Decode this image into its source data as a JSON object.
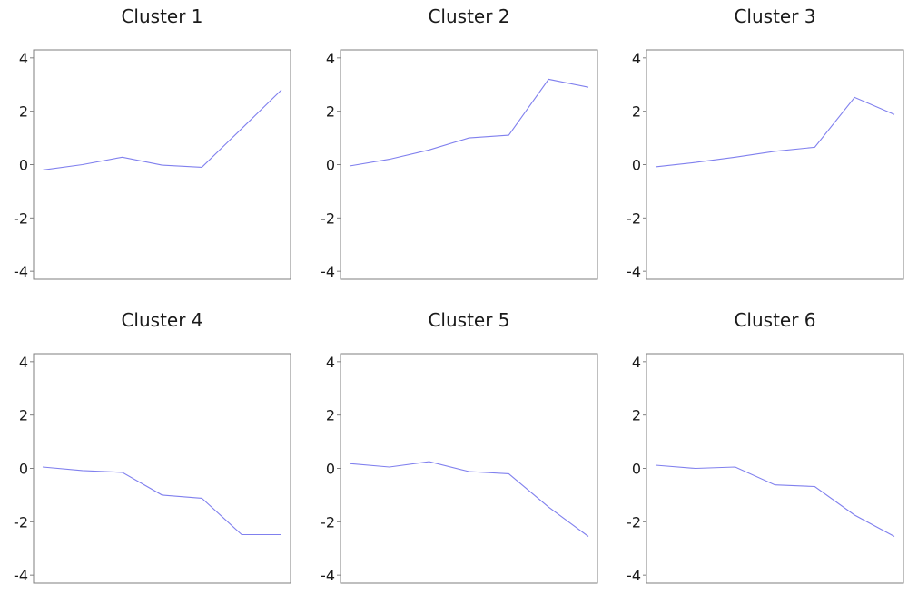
{
  "chart_data": [
    {
      "type": "line",
      "title": "Cluster 1",
      "ylim": [
        -4.3,
        4.3
      ],
      "yticks": [
        {
          "value": 4,
          "label": "4"
        },
        {
          "value": 2,
          "label": "2"
        },
        {
          "value": 0,
          "label": "0"
        },
        {
          "value": -2,
          "label": "-2"
        },
        {
          "value": -4,
          "label": "-4"
        }
      ],
      "x": [
        1,
        2,
        3,
        4,
        5,
        6,
        7
      ],
      "series": [
        {
          "values": [
            -0.2,
            0.0,
            0.28,
            -0.02,
            -0.1,
            1.35,
            2.8
          ]
        }
      ],
      "color": "#8080ee"
    },
    {
      "type": "line",
      "title": "Cluster 2",
      "ylim": [
        -4.3,
        4.3
      ],
      "yticks": [
        {
          "value": 4,
          "label": "4"
        },
        {
          "value": 2,
          "label": "2"
        },
        {
          "value": 0,
          "label": "0"
        },
        {
          "value": -2,
          "label": "-2"
        },
        {
          "value": -4,
          "label": "-4"
        }
      ],
      "x": [
        1,
        2,
        3,
        4,
        5,
        6,
        7
      ],
      "series": [
        {
          "values": [
            -0.05,
            0.2,
            0.55,
            1.0,
            1.1,
            3.2,
            2.9
          ]
        }
      ],
      "color": "#8080ee"
    },
    {
      "type": "line",
      "title": "Cluster 3",
      "ylim": [
        -4.3,
        4.3
      ],
      "yticks": [
        {
          "value": 4,
          "label": "4"
        },
        {
          "value": 2,
          "label": "2"
        },
        {
          "value": 0,
          "label": "0"
        },
        {
          "value": -2,
          "label": "-2"
        },
        {
          "value": -4,
          "label": "-4"
        }
      ],
      "x": [
        1,
        2,
        3,
        4,
        5,
        6,
        7
      ],
      "series": [
        {
          "values": [
            -0.08,
            0.08,
            0.28,
            0.5,
            0.65,
            2.52,
            1.88
          ]
        }
      ],
      "color": "#8080ee"
    },
    {
      "type": "line",
      "title": "Cluster 4",
      "ylim": [
        -4.3,
        4.3
      ],
      "yticks": [
        {
          "value": 4,
          "label": "4"
        },
        {
          "value": 2,
          "label": "2"
        },
        {
          "value": 0,
          "label": "0"
        },
        {
          "value": -2,
          "label": "-2"
        },
        {
          "value": -4,
          "label": "-4"
        }
      ],
      "x": [
        1,
        2,
        3,
        4,
        5,
        6,
        7
      ],
      "series": [
        {
          "values": [
            0.05,
            -0.08,
            -0.15,
            -1.0,
            -1.12,
            -2.48,
            -2.48
          ]
        }
      ],
      "color": "#8080ee"
    },
    {
      "type": "line",
      "title": "Cluster 5",
      "ylim": [
        -4.3,
        4.3
      ],
      "yticks": [
        {
          "value": 4,
          "label": "4"
        },
        {
          "value": 2,
          "label": "2"
        },
        {
          "value": 0,
          "label": "0"
        },
        {
          "value": -2,
          "label": "-2"
        },
        {
          "value": -4,
          "label": "-4"
        }
      ],
      "x": [
        1,
        2,
        3,
        4,
        5,
        6,
        7
      ],
      "series": [
        {
          "values": [
            0.18,
            0.05,
            0.25,
            -0.12,
            -0.2,
            -1.45,
            -2.55
          ]
        }
      ],
      "color": "#8080ee"
    },
    {
      "type": "line",
      "title": "Cluster 6",
      "ylim": [
        -4.3,
        4.3
      ],
      "yticks": [
        {
          "value": 4,
          "label": "4"
        },
        {
          "value": 2,
          "label": "2"
        },
        {
          "value": 0,
          "label": "0"
        },
        {
          "value": -2,
          "label": "-2"
        },
        {
          "value": -4,
          "label": "-4"
        }
      ],
      "x": [
        1,
        2,
        3,
        4,
        5,
        6,
        7
      ],
      "series": [
        {
          "values": [
            0.12,
            0.0,
            0.05,
            -0.62,
            -0.68,
            -1.75,
            -2.55
          ]
        }
      ],
      "color": "#8080ee"
    }
  ]
}
